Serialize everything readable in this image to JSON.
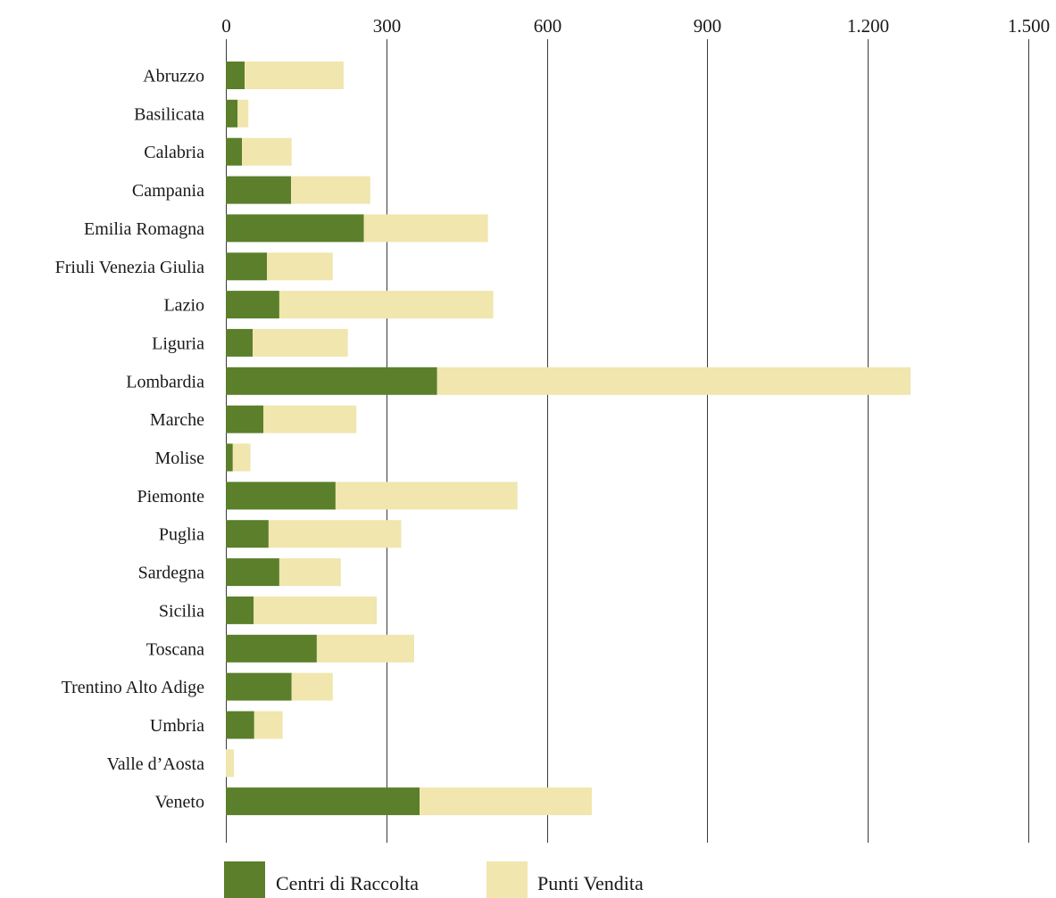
{
  "chart_data": {
    "type": "bar",
    "orientation": "horizontal",
    "stacked": true,
    "categories": [
      "Abruzzo",
      "Basilicata",
      "Calabria",
      "Campania",
      "Emilia Romagna",
      "Friuli Venezia Giulia",
      "Lazio",
      "Liguria",
      "Lombardia",
      "Marche",
      "Molise",
      "Piemonte",
      "Puglia",
      "Sardegna",
      "Sicilia",
      "Toscana",
      "Trentino Alto Adige",
      "Umbria",
      "Valle d’Aosta",
      "Veneto"
    ],
    "series": [
      {
        "name": "Centri di Raccolta",
        "color": "#5b7f2b",
        "values": [
          35,
          22,
          30,
          122,
          258,
          77,
          100,
          50,
          395,
          70,
          13,
          205,
          80,
          100,
          52,
          170,
          123,
          53,
          0,
          362
        ]
      },
      {
        "name": "Punti Vendita",
        "color": "#f0e6ae",
        "values": [
          185,
          20,
          93,
          148,
          232,
          123,
          400,
          178,
          885,
          174,
          33,
          340,
          248,
          115,
          230,
          182,
          77,
          53,
          15,
          322
        ]
      }
    ],
    "x_ticks": [
      "0",
      "300",
      "600",
      "900",
      "1.200",
      "1.500"
    ],
    "xlim": [
      0,
      1500
    ],
    "grid": true,
    "axis_position": "top",
    "legend_position": "bottom-left"
  }
}
